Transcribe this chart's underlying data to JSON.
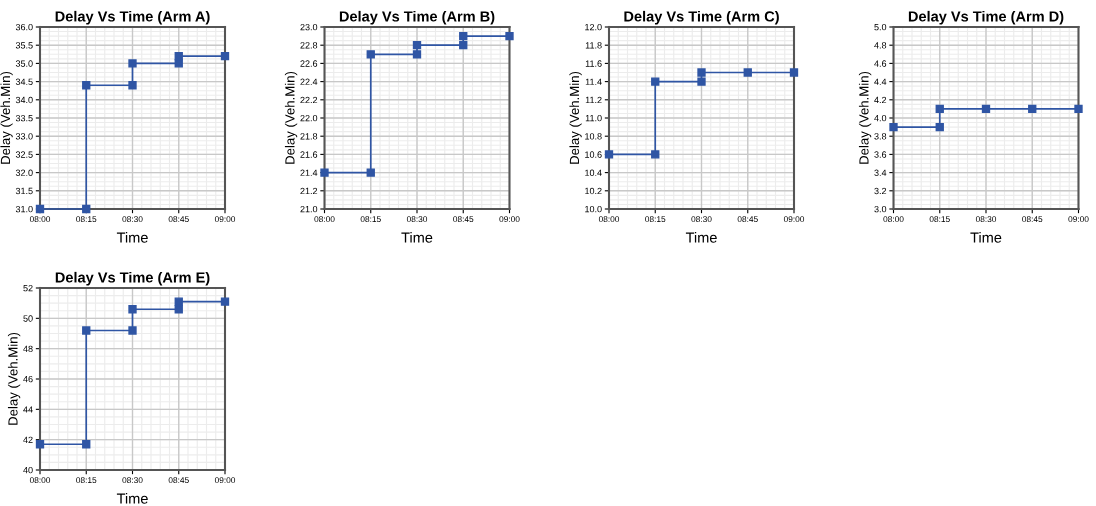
{
  "chart_data": [
    {
      "type": "line",
      "title": "Delay Vs Time (Arm A)",
      "xlabel": "Time",
      "ylabel": "Delay (Veh.Min)",
      "x": [
        8,
        8.25,
        8.25,
        8.5,
        8.5,
        8.75,
        8.75,
        9
      ],
      "values": [
        31.0,
        31.0,
        34.4,
        34.4,
        35.0,
        35.0,
        35.2,
        35.2
      ],
      "color": "#2f55a4",
      "marker": "square",
      "grid": true,
      "xlim": [
        8,
        9
      ],
      "xticks": [
        {
          "value": 8,
          "label": "08:00"
        },
        {
          "value": 8.25,
          "label": "08:15"
        },
        {
          "value": 8.5,
          "label": "08:30"
        },
        {
          "value": 8.75,
          "label": "08:45"
        },
        {
          "value": 9,
          "label": "09:00"
        }
      ],
      "ylim": [
        31,
        36
      ],
      "yticks": [
        {
          "value": 31,
          "label": "31.0"
        },
        31.5,
        {
          "value": 32,
          "label": "32.0"
        },
        32.5,
        {
          "value": 33,
          "label": "33.0"
        },
        33.5,
        {
          "value": 34,
          "label": "34.0"
        },
        34.5,
        {
          "value": 35,
          "label": "35.0"
        },
        35.5,
        {
          "value": 36,
          "label": "36.0"
        }
      ]
    },
    {
      "type": "line",
      "title": "Delay Vs Time (Arm B)",
      "xlabel": "Time",
      "ylabel": "Delay (Veh.Min)",
      "x": [
        8,
        8.25,
        8.25,
        8.5,
        8.5,
        8.75,
        8.75,
        9
      ],
      "values": [
        21.4,
        21.4,
        22.7,
        22.7,
        22.8,
        22.8,
        22.9,
        22.9
      ],
      "color": "#2f55a4",
      "marker": "square",
      "grid": true,
      "xlim": [
        8,
        9
      ],
      "xticks": [
        {
          "value": 8,
          "label": "08:00"
        },
        {
          "value": 8.25,
          "label": "08:15"
        },
        {
          "value": 8.5,
          "label": "08:30"
        },
        {
          "value": 8.75,
          "label": "08:45"
        },
        {
          "value": 9,
          "label": "09:00"
        }
      ],
      "ylim": [
        21,
        23
      ],
      "yticks": [
        {
          "value": 21,
          "label": "21.0"
        },
        21.2,
        21.4,
        21.6,
        21.8,
        {
          "value": 22,
          "label": "22.0"
        },
        22.2,
        22.4,
        22.6,
        22.8,
        {
          "value": 23,
          "label": "23.0"
        }
      ]
    },
    {
      "type": "line",
      "title": "Delay Vs Time (Arm C)",
      "xlabel": "Time",
      "ylabel": "Delay (Veh.Min)",
      "x": [
        8,
        8.25,
        8.25,
        8.5,
        8.5,
        8.75,
        9
      ],
      "values": [
        10.6,
        10.6,
        11.4,
        11.4,
        11.5,
        11.5,
        11.5
      ],
      "color": "#2f55a4",
      "marker": "square",
      "grid": true,
      "xlim": [
        8,
        9
      ],
      "xticks": [
        {
          "value": 8,
          "label": "08:00"
        },
        {
          "value": 8.25,
          "label": "08:15"
        },
        {
          "value": 8.5,
          "label": "08:30"
        },
        {
          "value": 8.75,
          "label": "08:45"
        },
        {
          "value": 9,
          "label": "09:00"
        }
      ],
      "ylim": [
        10,
        12
      ],
      "yticks": [
        {
          "value": 10,
          "label": "10.0"
        },
        10.2,
        10.4,
        10.6,
        10.8,
        {
          "value": 11,
          "label": "11.0"
        },
        11.2,
        11.4,
        11.6,
        11.8,
        {
          "value": 12,
          "label": "12.0"
        }
      ]
    },
    {
      "type": "line",
      "title": "Delay Vs Time (Arm D)",
      "xlabel": "Time",
      "ylabel": "Delay (Veh.Min)",
      "x": [
        8,
        8.25,
        8.25,
        8.5,
        8.75,
        9
      ],
      "values": [
        3.9,
        3.9,
        4.1,
        4.1,
        4.1,
        4.1
      ],
      "color": "#2f55a4",
      "marker": "square",
      "grid": true,
      "xlim": [
        8,
        9
      ],
      "xticks": [
        {
          "value": 8,
          "label": "08:00"
        },
        {
          "value": 8.25,
          "label": "08:15"
        },
        {
          "value": 8.5,
          "label": "08:30"
        },
        {
          "value": 8.75,
          "label": "08:45"
        },
        {
          "value": 9,
          "label": "09:00"
        }
      ],
      "ylim": [
        3,
        5
      ],
      "yticks": [
        {
          "value": 3,
          "label": "3.0"
        },
        3.2,
        3.4,
        3.6,
        3.8,
        {
          "value": 4,
          "label": "4.0"
        },
        4.2,
        4.4,
        4.6,
        4.8,
        {
          "value": 5,
          "label": "5.0"
        }
      ]
    },
    {
      "type": "line",
      "title": "Delay Vs Time (Arm E)",
      "xlabel": "Time",
      "ylabel": "Delay (Veh.Min)",
      "x": [
        8,
        8.25,
        8.25,
        8.5,
        8.5,
        8.75,
        8.75,
        9
      ],
      "values": [
        41.7,
        41.7,
        49.2,
        49.2,
        50.6,
        50.6,
        51.1,
        51.1
      ],
      "color": "#2f55a4",
      "marker": "square",
      "grid": true,
      "xlim": [
        8,
        9
      ],
      "xticks": [
        {
          "value": 8,
          "label": "08:00"
        },
        {
          "value": 8.25,
          "label": "08:15"
        },
        {
          "value": 8.5,
          "label": "08:30"
        },
        {
          "value": 8.75,
          "label": "08:45"
        },
        {
          "value": 9,
          "label": "09:00"
        }
      ],
      "ylim": [
        40,
        52
      ],
      "yticks": [
        40,
        42,
        44,
        46,
        48,
        50,
        52
      ]
    }
  ]
}
